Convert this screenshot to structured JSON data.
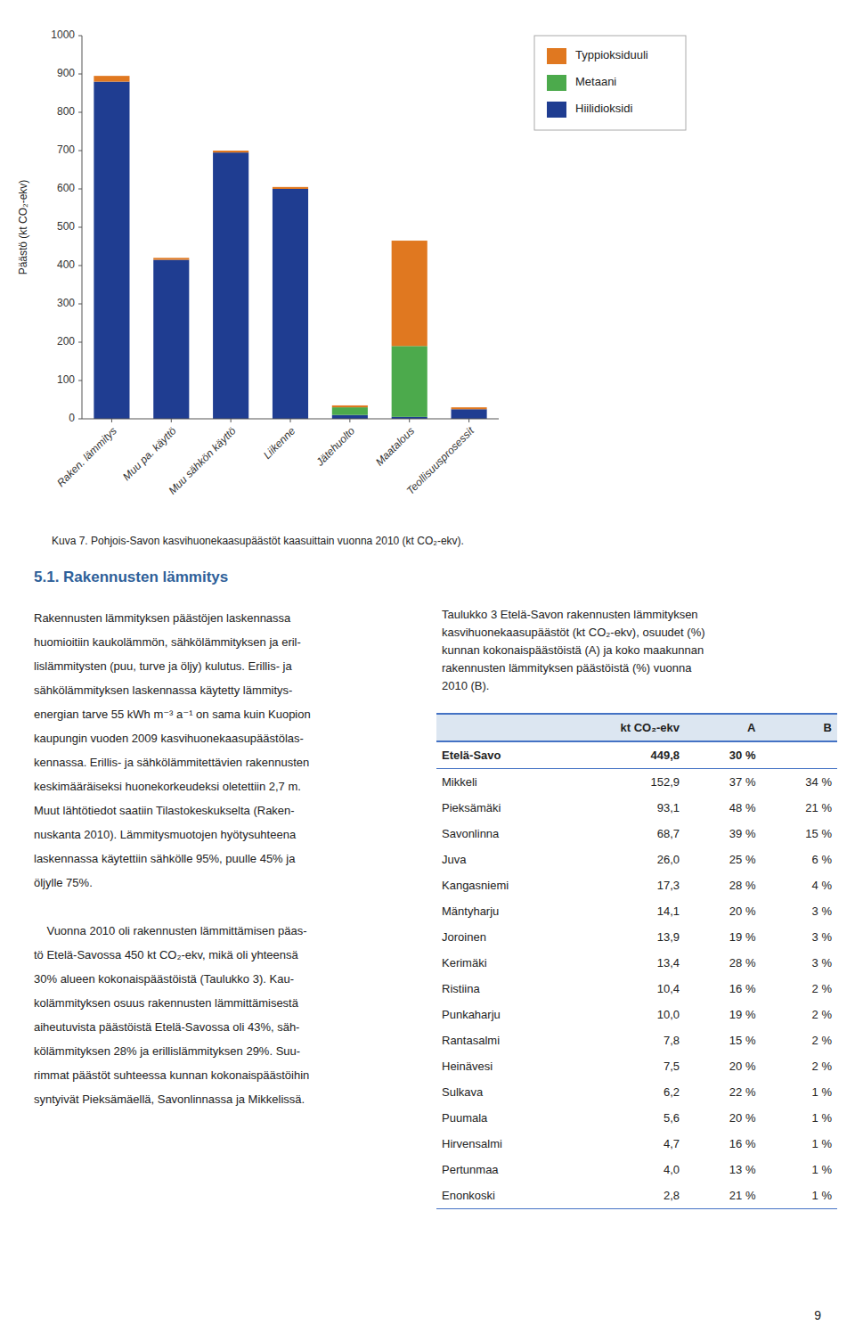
{
  "chart_data": {
    "type": "bar",
    "stacked": true,
    "categories": [
      "Raken. lämmitys",
      "Muu pa. käyttö",
      "Muu sähkön käyttö",
      "Liikenne",
      "Jätehuolto",
      "Maatalous",
      "Teollisuusprosessit"
    ],
    "series": [
      {
        "name": "Hiilidioksidi",
        "color": "#1f3d91",
        "values": [
          880,
          415,
          695,
          600,
          10,
          5,
          25
        ]
      },
      {
        "name": "Metaani",
        "color": "#4caa4c",
        "values": [
          0,
          0,
          0,
          0,
          20,
          185,
          0
        ]
      },
      {
        "name": "Typpioksiduuli",
        "color": "#e07820",
        "values": [
          15,
          5,
          5,
          5,
          5,
          275,
          5
        ]
      }
    ],
    "y_label": "Päästö (kt CO₂-ekv)",
    "ylim": [
      0,
      1000
    ],
    "yticks": [
      0,
      100,
      200,
      300,
      400,
      500,
      600,
      700,
      800,
      900,
      1000
    ],
    "grid": false,
    "legend": "upper right"
  },
  "caption": "Kuva 7. Pohjois-Savon kasvihuonekaasupäästöt kaasuittain vuonna 2010 (kt CO₂-ekv).",
  "section_title": "5.1. Rakennusten lämmitys",
  "body_paragraphs": [
    [
      "Rakennusten lämmityksen päästöjen laskennassa",
      "huomioitiin kaukolämmön, sähkölämmityksen ja eril-",
      "lislämmitysten (puu, turve ja öljy) kulutus. Erillis- ja",
      "sähkölämmityksen laskennassa käytetty lämmitys-",
      "energian tarve 55 kWh m⁻³ a⁻¹ on sama kuin Kuopion",
      "kaupungin vuoden 2009 kasvihuonekaasupäästölas-",
      "kennassa. Erillis- ja sähkölämmitettävien rakennusten",
      "keskimääräiseksi huonekorkeudeksi oletettiin 2,7 m.",
      "Muut lähtötiedot saatiin Tilastokeskukselta (Raken-",
      "nuskanta 2010). Lämmitysmuotojen hyötysuhteena",
      "laskennassa käytettiin sähkölle 95%, puulle 45% ja",
      "öljylle 75%."
    ],
    [
      "    Vuonna 2010 oli rakennusten lämmittämisen päas-",
      "tö Etelä-Savossa 450 kt CO₂-ekv, mikä oli yhteensä",
      "30% alueen kokonaispäästöistä (Taulukko 3). Kau-",
      "kolämmityksen osuus rakennusten lämmittämisestä",
      "aiheutuvista päästöistä Etelä-Savossa oli 43%, säh-",
      "kölämmityksen 28% ja erillislämmityksen 29%. Suu-",
      "rimmat päästöt suhteessa kunnan kokonaispäästöihin",
      "syntyivät Pieksämäellä, Savonlinnassa ja Mikkelissä."
    ]
  ],
  "table_caption_lines": [
    "Taulukko 3 Etelä-Savon rakennusten lämmityksen",
    "kasvihuonekaasupäästöt (kt CO₂-ekv), osuudet (%)",
    "kunnan kokonaispäästöistä (A) ja koko maakunnan",
    "rakennusten lämmityksen päästöistä (%) vuonna",
    "2010 (B)."
  ],
  "table": {
    "columns": [
      null,
      "kt CO₂-ekv",
      "A",
      "B"
    ],
    "rows": [
      [
        "Etelä-Savo",
        "449,8",
        "30 %",
        null
      ],
      [
        "Mikkeli",
        "152,9",
        "37 %",
        "34 %"
      ],
      [
        "Pieksämäki",
        "93,1",
        "48 %",
        "21 %"
      ],
      [
        "Savonlinna",
        "68,7",
        "39 %",
        "15 %"
      ],
      [
        "Juva",
        "26,0",
        "25 %",
        "6 %"
      ],
      [
        "Kangasniemi",
        "17,3",
        "28 %",
        "4 %"
      ],
      [
        "Mäntyharju",
        "14,1",
        "20 %",
        "3 %"
      ],
      [
        "Joroinen",
        "13,9",
        "19 %",
        "3 %"
      ],
      [
        "Kerimäki",
        "13,4",
        "28 %",
        "3 %"
      ],
      [
        "Ristiina",
        "10,4",
        "16 %",
        "2 %"
      ],
      [
        "Punkaharju",
        "10,0",
        "19 %",
        "2 %"
      ],
      [
        "Rantasalmi",
        "7,8",
        "15 %",
        "2 %"
      ],
      [
        "Heinävesi",
        "7,5",
        "20 %",
        "2 %"
      ],
      [
        "Sulkava",
        "6,2",
        "22 %",
        "1 %"
      ],
      [
        "Puumala",
        "5,6",
        "20 %",
        "1 %"
      ],
      [
        "Hirvensalmi",
        "4,7",
        "16 %",
        "1 %"
      ],
      [
        "Pertunmaa",
        "4,0",
        "13 %",
        "1 %"
      ],
      [
        "Enonkoski",
        "2,8",
        "21 %",
        "1 %"
      ]
    ]
  },
  "page_number": "9"
}
